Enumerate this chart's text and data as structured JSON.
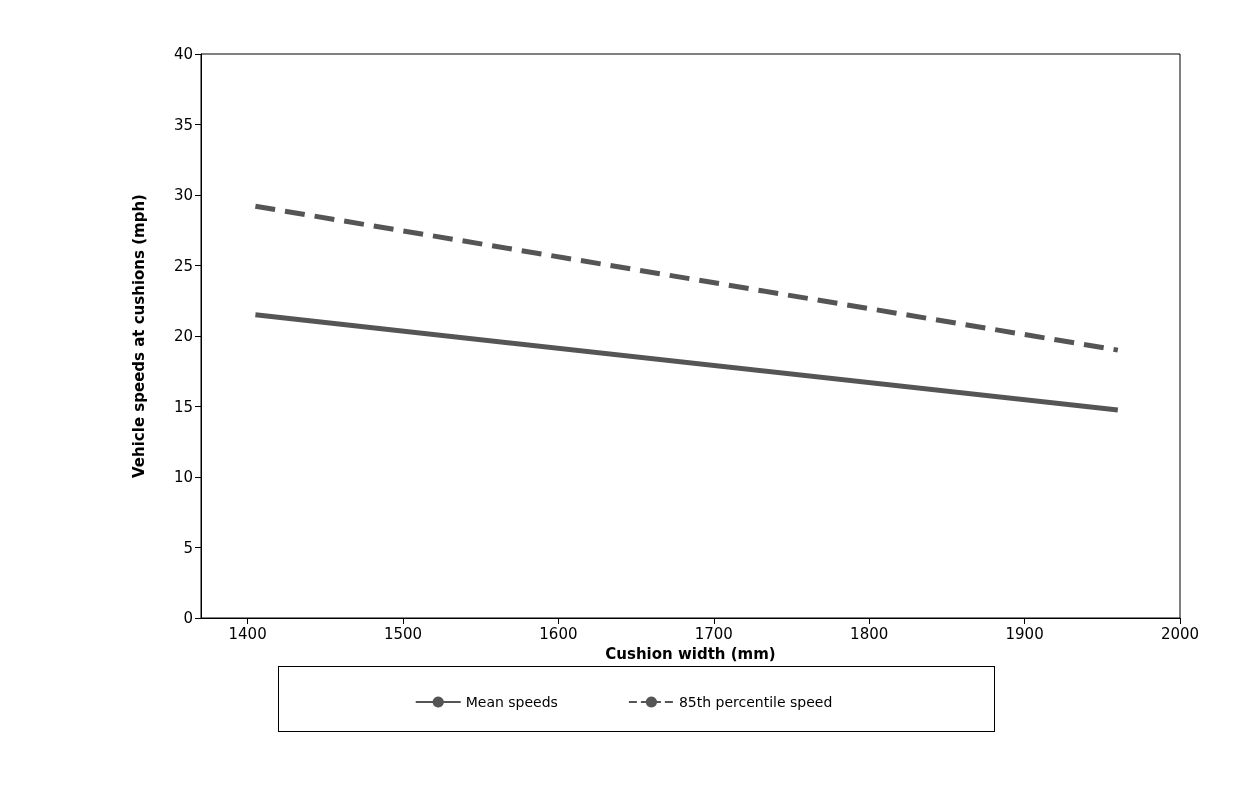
{
  "chart_data": {
    "type": "line",
    "xlabel": "Cushion width (mm)",
    "ylabel": "Vehicle speeds at cushions (mph)",
    "x": [
      1405,
      1960
    ],
    "series": [
      {
        "name": "Mean speeds",
        "color": "#555555",
        "values": [
          21.5,
          14.75
        ],
        "line_style": "solid"
      },
      {
        "name": "85th percentile speed",
        "color": "#555555",
        "values": [
          29.2,
          19.0
        ],
        "line_style": "dashed"
      }
    ],
    "xlim": [
      1370,
      2000
    ],
    "xticks": [
      1400,
      1500,
      1600,
      1700,
      1800,
      1900,
      2000
    ],
    "ylim": [
      0,
      40
    ],
    "yticks": [
      0,
      5,
      10,
      15,
      20,
      25,
      30,
      35,
      40
    ],
    "grid": false,
    "legend": "bottom",
    "marker": "none"
  }
}
